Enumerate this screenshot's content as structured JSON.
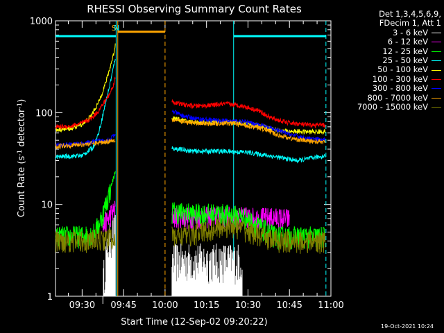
{
  "chart_data": {
    "type": "line",
    "title": "RHESSI Observing Summary Count Rates",
    "xlabel": "Start Time (12-Sep-02 09:20:22)",
    "ylabel_html": "Count Rate (s<tspan dy='-4' font-size='9'>-1</tspan><tspan dy='4'> detector</tspan><tspan dy='-4' font-size='9'>-1</tspan><tspan dy='4'>)</tspan>",
    "x_axis": {
      "unit": "minutes after 09:00",
      "range": [
        20.37,
        120
      ],
      "ticks": [
        30,
        45,
        60,
        75,
        90,
        105,
        120
      ],
      "tick_labels": [
        "09:30",
        "09:45",
        "10:00",
        "10:15",
        "10:30",
        "10:45",
        "11:00"
      ]
    },
    "y_axis": {
      "scale": "log",
      "range": [
        1,
        1000
      ],
      "ticks": [
        1,
        10,
        100,
        1000
      ],
      "tick_labels": [
        "1",
        "10",
        "100",
        "1000"
      ]
    },
    "legend_placement": "right-outside",
    "legend_header": [
      "Det 1,3,4,5,6,9,",
      "FDecim 1, Att 1"
    ],
    "timestamp": "19-Oct-2021 10:24",
    "flags": [
      {
        "label": "S",
        "color": "#ffa500",
        "x": 41.5
      },
      {
        "label": "N",
        "color": "#00ffff",
        "x": 42.5
      }
    ],
    "vertical_lines": [
      {
        "x": 42.3,
        "color": "#00ffff",
        "style": "solid"
      },
      {
        "x": 42.9,
        "color": "#ffa500",
        "style": "solid"
      },
      {
        "x": 60.0,
        "color": "#ffa500",
        "style": "dashed"
      },
      {
        "x": 84.8,
        "color": "#00ffff",
        "style": "solid"
      },
      {
        "x": 118.2,
        "color": "#00ffff",
        "style": "dashed"
      }
    ],
    "overlay_bars": [
      {
        "color": "#00ffff",
        "y": 680,
        "x_ranges": [
          [
            20.37,
            42.3
          ],
          [
            84.8,
            118.2
          ]
        ]
      },
      {
        "color": "#ffa500",
        "y": 760,
        "x_ranges": [
          [
            42.9,
            60.0
          ]
        ]
      }
    ],
    "gaps": [
      [
        42.3,
        62.0
      ]
    ],
    "series": [
      {
        "name": "3 - 6 keV",
        "color": "#ffffff",
        "style": "spiky",
        "points": [
          [
            37.5,
            1.0
          ],
          [
            38.5,
            2.0
          ],
          [
            39.5,
            2.8
          ],
          [
            40.5,
            3.5
          ],
          [
            41.5,
            3.8
          ],
          [
            42.0,
            4.0
          ]
        ],
        "points2": [
          [
            62.5,
            1.9
          ],
          [
            70.0,
            1.9
          ],
          [
            75.0,
            1.9
          ],
          [
            80.0,
            1.9
          ],
          [
            85.0,
            1.9
          ],
          [
            88.0,
            1.9
          ]
        ]
      },
      {
        "name": "6 - 12 keV",
        "color": "#ff00ff",
        "points": [
          [
            37.5,
            5.5
          ],
          [
            38.5,
            6.5
          ],
          [
            39.5,
            7.0
          ],
          [
            40.5,
            8.0
          ],
          [
            41.5,
            8.5
          ],
          [
            42.0,
            9.0
          ]
        ],
        "points2": [
          [
            62.5,
            7.5
          ],
          [
            70.0,
            7.3
          ],
          [
            80.0,
            7.5
          ],
          [
            90.0,
            7.3
          ],
          [
            100.0,
            7.2
          ],
          [
            105.0,
            7.0
          ]
        ]
      },
      {
        "name": "12 - 25 keV",
        "color": "#00ff00",
        "points": [
          [
            20.4,
            4.5
          ],
          [
            30.0,
            4.6
          ],
          [
            34.0,
            4.8
          ],
          [
            36.0,
            6.0
          ],
          [
            37.5,
            8.0
          ],
          [
            39.0,
            11.0
          ],
          [
            40.5,
            16.0
          ],
          [
            41.5,
            20.0
          ],
          [
            42.0,
            23.0
          ]
        ],
        "points2": [
          [
            62.5,
            8.5
          ],
          [
            70.0,
            8.0
          ],
          [
            80.0,
            8.0
          ],
          [
            88.0,
            7.5
          ],
          [
            93.0,
            6.0
          ],
          [
            100.0,
            4.5
          ],
          [
            110.0,
            4.5
          ],
          [
            118.0,
            4.5
          ]
        ]
      },
      {
        "name": "25 - 50 keV",
        "color": "#00ffff",
        "points": [
          [
            20.4,
            33.0
          ],
          [
            30.0,
            34.0
          ],
          [
            34.0,
            42.0
          ],
          [
            36.0,
            60.0
          ],
          [
            38.0,
            110.0
          ],
          [
            40.0,
            200.0
          ],
          [
            41.5,
            330.0
          ],
          [
            42.0,
            400.0
          ]
        ],
        "points2": [
          [
            62.5,
            41.0
          ],
          [
            70.0,
            38.0
          ],
          [
            80.0,
            38.0
          ],
          [
            90.0,
            37.0
          ],
          [
            100.0,
            33.0
          ],
          [
            108.0,
            30.0
          ],
          [
            118.0,
            34.0
          ]
        ]
      },
      {
        "name": "50 - 100 keV",
        "color": "#ffff00",
        "points": [
          [
            20.4,
            65.0
          ],
          [
            26.0,
            67.0
          ],
          [
            30.0,
            75.0
          ],
          [
            33.0,
            90.0
          ],
          [
            36.0,
            130.0
          ],
          [
            38.0,
            190.0
          ],
          [
            40.0,
            300.0
          ],
          [
            41.5,
            450.0
          ],
          [
            42.0,
            550.0
          ]
        ],
        "points2": [
          [
            62.5,
            88.0
          ],
          [
            68.0,
            80.0
          ],
          [
            75.0,
            78.0
          ],
          [
            82.0,
            80.0
          ],
          [
            90.0,
            75.0
          ],
          [
            96.0,
            70.0
          ],
          [
            102.0,
            63.0
          ],
          [
            110.0,
            62.0
          ],
          [
            118.0,
            62.0
          ]
        ]
      },
      {
        "name": "100 - 300 keV",
        "color": "#ff0000",
        "points": [
          [
            20.4,
            70.0
          ],
          [
            26.0,
            71.0
          ],
          [
            30.0,
            77.0
          ],
          [
            33.0,
            85.0
          ],
          [
            36.0,
            105.0
          ],
          [
            38.0,
            130.0
          ],
          [
            40.0,
            160.0
          ],
          [
            41.5,
            210.0
          ],
          [
            42.0,
            240.0
          ]
        ],
        "points2": [
          [
            62.5,
            132.0
          ],
          [
            65.0,
            125.0
          ],
          [
            70.0,
            118.0
          ],
          [
            76.0,
            120.0
          ],
          [
            82.0,
            125.0
          ],
          [
            88.0,
            118.0
          ],
          [
            94.0,
            105.0
          ],
          [
            98.0,
            88.0
          ],
          [
            104.0,
            78.0
          ],
          [
            112.0,
            73.0
          ],
          [
            118.0,
            73.0
          ]
        ]
      },
      {
        "name": "300 - 800 keV",
        "color": "#0000ff",
        "points": [
          [
            20.4,
            44.0
          ],
          [
            30.0,
            46.0
          ],
          [
            36.0,
            49.0
          ],
          [
            40.0,
            51.0
          ],
          [
            41.0,
            55.0
          ],
          [
            42.0,
            56.0
          ]
        ],
        "points2": [
          [
            62.5,
            105.0
          ],
          [
            66.0,
            93.0
          ],
          [
            72.0,
            85.0
          ],
          [
            80.0,
            82.0
          ],
          [
            88.0,
            80.0
          ],
          [
            94.0,
            74.0
          ],
          [
            100.0,
            65.0
          ],
          [
            106.0,
            57.0
          ],
          [
            112.0,
            52.0
          ],
          [
            118.0,
            50.0
          ]
        ]
      },
      {
        "name": "800 - 7000 keV",
        "color": "#ffa500",
        "points": [
          [
            20.4,
            43.0
          ],
          [
            30.0,
            45.0
          ],
          [
            36.0,
            47.0
          ],
          [
            40.0,
            49.0
          ],
          [
            42.0,
            51.0
          ]
        ],
        "points2": [
          [
            62.5,
            84.0
          ],
          [
            68.0,
            78.0
          ],
          [
            76.0,
            76.0
          ],
          [
            84.0,
            77.0
          ],
          [
            90.0,
            72.0
          ],
          [
            96.0,
            66.0
          ],
          [
            100.0,
            58.0
          ],
          [
            106.0,
            52.0
          ],
          [
            112.0,
            49.0
          ],
          [
            118.0,
            48.0
          ]
        ]
      },
      {
        "name": "7000 - 15000 keV",
        "color": "#808000",
        "points": [
          [
            20.4,
            4.0
          ],
          [
            25.0,
            4.1
          ],
          [
            30.0,
            4.0
          ],
          [
            35.0,
            4.2
          ],
          [
            40.0,
            4.3
          ],
          [
            42.0,
            4.3
          ]
        ],
        "points2": [
          [
            62.5,
            4.5
          ],
          [
            70.0,
            4.8
          ],
          [
            75.0,
            5.2
          ],
          [
            80.0,
            5.8
          ],
          [
            85.0,
            5.9
          ],
          [
            90.0,
            5.2
          ],
          [
            96.0,
            4.4
          ],
          [
            102.0,
            4.0
          ],
          [
            110.0,
            4.0
          ],
          [
            118.0,
            4.0
          ]
        ]
      }
    ]
  }
}
